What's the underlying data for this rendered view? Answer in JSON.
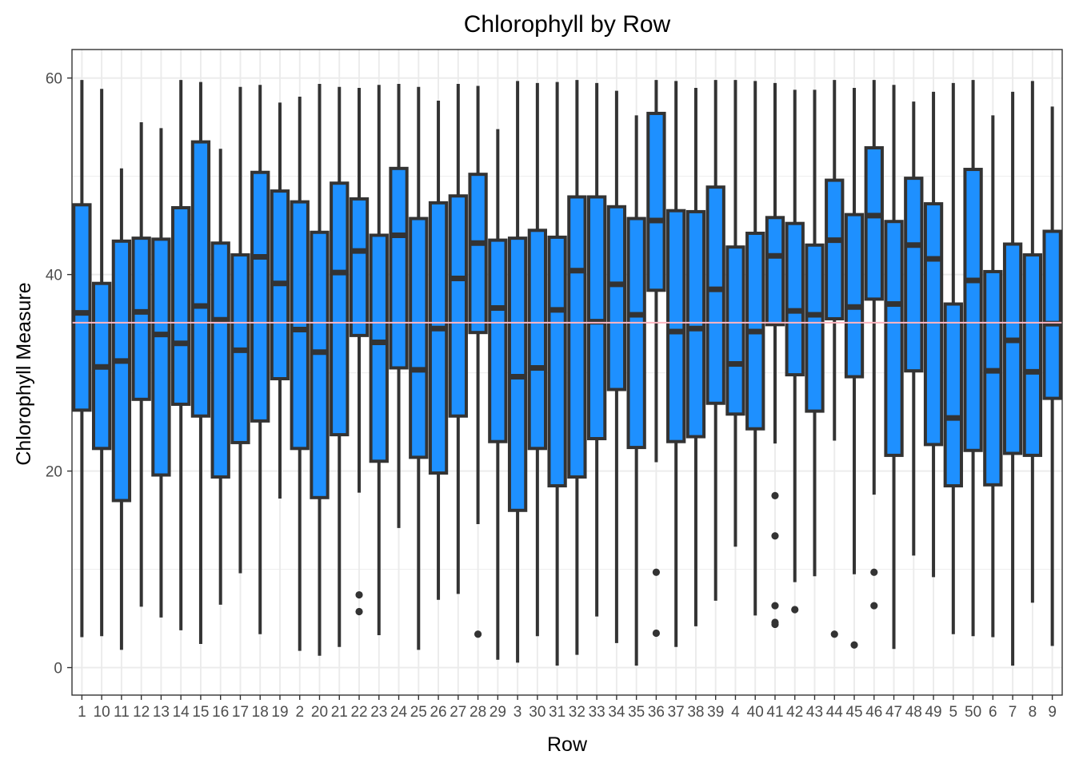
{
  "chart_data": {
    "type": "boxplot",
    "title": "Chlorophyll by Row",
    "xlabel": "Row",
    "ylabel": "Chlorophyll Measure",
    "ylim": [
      -2.8,
      62.9
    ],
    "yticks": [
      0,
      20,
      40,
      60
    ],
    "reference_line": {
      "y": 35.1,
      "color": "#ffb6c1"
    },
    "colors": {
      "box_fill": "#1e90ff",
      "box_stroke": "#333333",
      "background": "#ffffff",
      "grid": "#ebebeb",
      "panel_border": "#333333"
    },
    "grid": true,
    "legend": "none",
    "categories": [
      "1",
      "10",
      "11",
      "12",
      "13",
      "14",
      "15",
      "16",
      "17",
      "18",
      "19",
      "2",
      "20",
      "21",
      "22",
      "23",
      "24",
      "25",
      "26",
      "27",
      "28",
      "29",
      "3",
      "30",
      "31",
      "32",
      "33",
      "34",
      "35",
      "36",
      "37",
      "38",
      "39",
      "4",
      "40",
      "41",
      "42",
      "43",
      "44",
      "45",
      "46",
      "47",
      "48",
      "49",
      "5",
      "50",
      "6",
      "7",
      "8",
      "9"
    ],
    "boxes": [
      {
        "min": 3.1,
        "q1": 26.2,
        "median": 36.1,
        "q3": 47.1,
        "max": 59.8,
        "outliers": []
      },
      {
        "min": 3.2,
        "q1": 22.3,
        "median": 30.6,
        "q3": 39.1,
        "max": 58.9,
        "outliers": []
      },
      {
        "min": 1.8,
        "q1": 17.0,
        "median": 31.2,
        "q3": 43.4,
        "max": 50.8,
        "outliers": []
      },
      {
        "min": 6.2,
        "q1": 27.3,
        "median": 36.2,
        "q3": 43.7,
        "max": 55.5,
        "outliers": []
      },
      {
        "min": 5.1,
        "q1": 19.6,
        "median": 33.9,
        "q3": 43.6,
        "max": 54.9,
        "outliers": []
      },
      {
        "min": 3.8,
        "q1": 26.8,
        "median": 33.0,
        "q3": 46.8,
        "max": 59.8,
        "outliers": []
      },
      {
        "min": 2.4,
        "q1": 25.6,
        "median": 36.8,
        "q3": 53.5,
        "max": 59.6,
        "outliers": []
      },
      {
        "min": 6.4,
        "q1": 19.4,
        "median": 35.4,
        "q3": 43.2,
        "max": 52.8,
        "outliers": []
      },
      {
        "min": 9.6,
        "q1": 22.9,
        "median": 32.3,
        "q3": 42.0,
        "max": 59.1,
        "outliers": []
      },
      {
        "min": 3.4,
        "q1": 25.1,
        "median": 41.8,
        "q3": 50.4,
        "max": 59.3,
        "outliers": []
      },
      {
        "min": 17.2,
        "q1": 29.4,
        "median": 39.1,
        "q3": 48.5,
        "max": 57.5,
        "outliers": []
      },
      {
        "min": 1.7,
        "q1": 22.3,
        "median": 34.4,
        "q3": 47.4,
        "max": 58.1,
        "outliers": []
      },
      {
        "min": 1.2,
        "q1": 17.3,
        "median": 32.1,
        "q3": 44.3,
        "max": 59.4,
        "outliers": []
      },
      {
        "min": 2.1,
        "q1": 23.7,
        "median": 40.2,
        "q3": 49.3,
        "max": 59.1,
        "outliers": []
      },
      {
        "min": 17.8,
        "q1": 33.8,
        "median": 42.4,
        "q3": 47.7,
        "max": 59.0,
        "outliers": [
          7.4,
          5.7
        ]
      },
      {
        "min": 3.3,
        "q1": 21.0,
        "median": 33.1,
        "q3": 44.0,
        "max": 59.3,
        "outliers": []
      },
      {
        "min": 14.2,
        "q1": 30.5,
        "median": 44.0,
        "q3": 50.8,
        "max": 59.4,
        "outliers": []
      },
      {
        "min": 1.8,
        "q1": 21.4,
        "median": 30.3,
        "q3": 45.7,
        "max": 59.1,
        "outliers": []
      },
      {
        "min": 6.9,
        "q1": 19.8,
        "median": 34.5,
        "q3": 47.3,
        "max": 57.7,
        "outliers": []
      },
      {
        "min": 7.5,
        "q1": 25.6,
        "median": 39.6,
        "q3": 48.0,
        "max": 59.4,
        "outliers": []
      },
      {
        "min": 14.6,
        "q1": 34.1,
        "median": 43.2,
        "q3": 50.2,
        "max": 59.2,
        "outliers": [
          3.4
        ]
      },
      {
        "min": 0.8,
        "q1": 23.0,
        "median": 36.6,
        "q3": 43.5,
        "max": 54.8,
        "outliers": []
      },
      {
        "min": 0.5,
        "q1": 16.0,
        "median": 29.6,
        "q3": 43.7,
        "max": 59.7,
        "outliers": []
      },
      {
        "min": 3.2,
        "q1": 22.3,
        "median": 30.5,
        "q3": 44.5,
        "max": 59.5,
        "outliers": []
      },
      {
        "min": 0.2,
        "q1": 18.5,
        "median": 36.4,
        "q3": 43.8,
        "max": 59.6,
        "outliers": []
      },
      {
        "min": 1.3,
        "q1": 19.4,
        "median": 40.4,
        "q3": 47.9,
        "max": 59.8,
        "outliers": []
      },
      {
        "min": 5.2,
        "q1": 23.3,
        "median": 35.2,
        "q3": 47.9,
        "max": 59.5,
        "outliers": []
      },
      {
        "min": 2.5,
        "q1": 28.3,
        "median": 39.0,
        "q3": 46.9,
        "max": 58.7,
        "outliers": []
      },
      {
        "min": 0.2,
        "q1": 22.4,
        "median": 35.9,
        "q3": 45.7,
        "max": 56.2,
        "outliers": []
      },
      {
        "min": 20.9,
        "q1": 38.4,
        "median": 45.5,
        "q3": 56.4,
        "max": 59.8,
        "outliers": [
          9.7,
          3.5
        ]
      },
      {
        "min": 2.1,
        "q1": 23.0,
        "median": 34.2,
        "q3": 46.5,
        "max": 59.7,
        "outliers": []
      },
      {
        "min": 4.2,
        "q1": 23.5,
        "median": 34.5,
        "q3": 46.4,
        "max": 59.0,
        "outliers": []
      },
      {
        "min": 6.8,
        "q1": 26.9,
        "median": 38.5,
        "q3": 48.9,
        "max": 59.8,
        "outliers": []
      },
      {
        "min": 12.3,
        "q1": 25.8,
        "median": 30.9,
        "q3": 42.8,
        "max": 59.8,
        "outliers": []
      },
      {
        "min": 5.3,
        "q1": 24.3,
        "median": 34.2,
        "q3": 44.2,
        "max": 59.7,
        "outliers": []
      },
      {
        "min": 22.8,
        "q1": 34.9,
        "median": 41.9,
        "q3": 45.8,
        "max": 59.5,
        "outliers": [
          17.5,
          13.4,
          6.3,
          4.6,
          4.4
        ]
      },
      {
        "min": 8.7,
        "q1": 29.8,
        "median": 36.3,
        "q3": 45.2,
        "max": 58.8,
        "outliers": [
          5.9
        ]
      },
      {
        "min": 9.3,
        "q1": 26.1,
        "median": 35.9,
        "q3": 43.0,
        "max": 58.8,
        "outliers": []
      },
      {
        "min": 23.1,
        "q1": 35.5,
        "median": 43.5,
        "q3": 49.6,
        "max": 59.8,
        "outliers": [
          3.4
        ]
      },
      {
        "min": 9.5,
        "q1": 29.6,
        "median": 36.7,
        "q3": 46.1,
        "max": 59.0,
        "outliers": [
          2.3
        ]
      },
      {
        "min": 17.6,
        "q1": 37.5,
        "median": 46.0,
        "q3": 52.9,
        "max": 59.8,
        "outliers": [
          9.7,
          6.3
        ]
      },
      {
        "min": 1.9,
        "q1": 21.6,
        "median": 37.0,
        "q3": 45.4,
        "max": 59.3,
        "outliers": []
      },
      {
        "min": 11.4,
        "q1": 30.2,
        "median": 43.0,
        "q3": 49.8,
        "max": 57.6,
        "outliers": []
      },
      {
        "min": 9.2,
        "q1": 22.7,
        "median": 41.6,
        "q3": 47.2,
        "max": 58.6,
        "outliers": []
      },
      {
        "min": 3.4,
        "q1": 18.5,
        "median": 25.4,
        "q3": 37.0,
        "max": 59.5,
        "outliers": []
      },
      {
        "min": 3.2,
        "q1": 22.1,
        "median": 39.4,
        "q3": 50.7,
        "max": 59.8,
        "outliers": []
      },
      {
        "min": 3.1,
        "q1": 18.6,
        "median": 30.2,
        "q3": 40.3,
        "max": 56.2,
        "outliers": []
      },
      {
        "min": 0.2,
        "q1": 21.8,
        "median": 33.3,
        "q3": 43.1,
        "max": 58.6,
        "outliers": []
      },
      {
        "min": 6.6,
        "q1": 21.6,
        "median": 30.1,
        "q3": 42.0,
        "max": 59.7,
        "outliers": []
      },
      {
        "min": 2.2,
        "q1": 27.4,
        "median": 35.0,
        "q3": 44.4,
        "max": 57.1,
        "outliers": []
      }
    ]
  }
}
